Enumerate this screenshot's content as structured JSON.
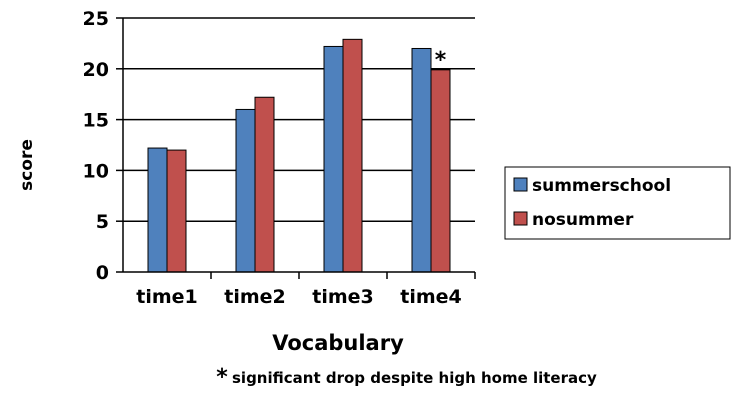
{
  "chart_data": {
    "type": "bar",
    "categories": [
      "time1",
      "time2",
      "time3",
      "time4"
    ],
    "series": [
      {
        "name": "summerschool",
        "values": [
          12.2,
          16.0,
          22.2,
          22.0
        ],
        "color": "#4f81bd"
      },
      {
        "name": "nosummer",
        "values": [
          12.0,
          17.2,
          22.9,
          19.9
        ],
        "color": "#c0504d"
      }
    ],
    "title": "",
    "xlabel": "Vocabulary",
    "ylabel": "score",
    "ylim": [
      0,
      25
    ],
    "yticks": [
      0,
      5,
      10,
      15,
      20,
      25
    ],
    "grid": true,
    "legend_position": "right",
    "annotations": [
      {
        "text": "*",
        "category": "time4",
        "series": "nosummer"
      }
    ],
    "footnote": {
      "marker": "*",
      "text": "significant drop despite high home literacy"
    }
  }
}
